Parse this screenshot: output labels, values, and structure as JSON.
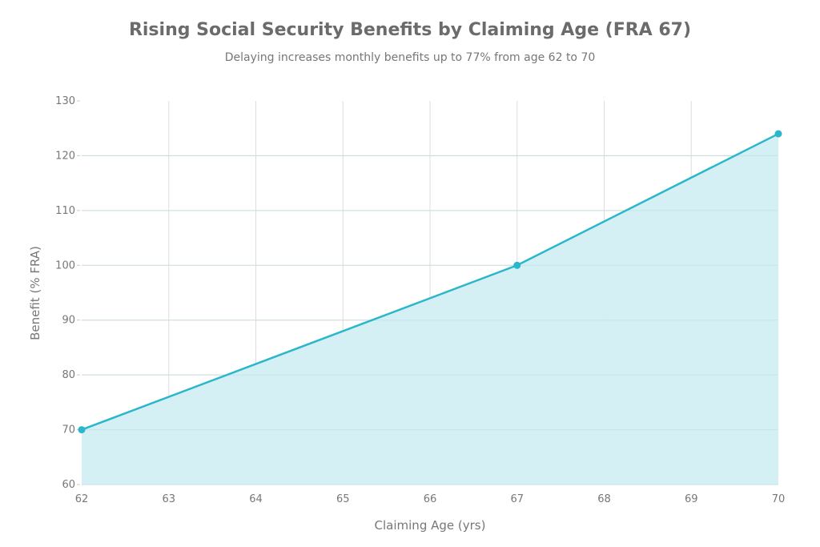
{
  "chart_data": {
    "type": "area",
    "title": "Rising Social Security Benefits by Claiming Age (FRA 67)",
    "subtitle": "Delaying increases monthly benefits up to 77% from age 62 to 70",
    "xlabel": "Claiming Age (yrs)",
    "ylabel": "Benefit (% FRA)",
    "xlim": [
      62,
      70
    ],
    "ylim": [
      60,
      130
    ],
    "xticks": [
      62,
      63,
      64,
      65,
      66,
      67,
      68,
      69,
      70
    ],
    "yticks": [
      60,
      70,
      80,
      90,
      100,
      110,
      120,
      130
    ],
    "grid": true,
    "x": [
      62,
      67,
      70
    ],
    "y": [
      70,
      100,
      124
    ],
    "colors": {
      "line": "#2bb7cb",
      "fill": "#d3eff4",
      "grid": "#dddddd"
    }
  }
}
